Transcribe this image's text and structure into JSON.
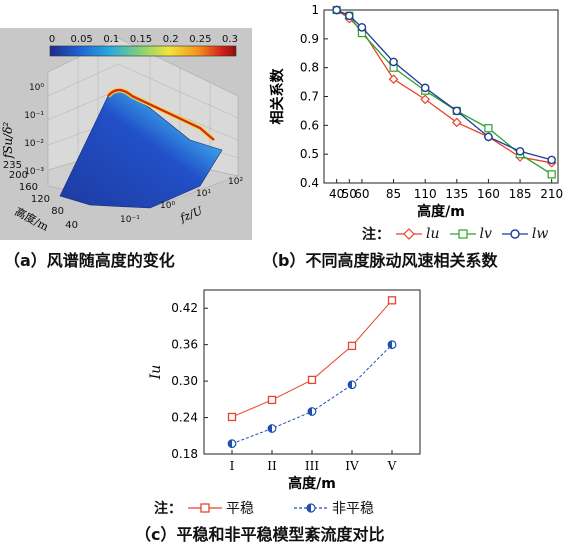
{
  "panel_a": {
    "caption": "（a）风谱随高度的变化",
    "colorbar_ticks": [
      "0",
      "0.05",
      "0.1",
      "0.15",
      "0.2",
      "0.25",
      "0.3"
    ],
    "z_axis_label": "fSu/δ²",
    "z_ticks": [
      "10⁰",
      "10⁻¹",
      "10⁻²",
      "10⁻³"
    ],
    "height_axis_label": "高度/m",
    "height_ticks": [
      "40",
      "80",
      "120",
      "160",
      "200",
      "235"
    ],
    "freq_axis_label": "fz/U",
    "freq_ticks": [
      "10⁻¹",
      "10⁰",
      "10¹",
      "10²"
    ],
    "colors": [
      "#1e2a8a",
      "#1f5fd0",
      "#29a9e0",
      "#7fd07a",
      "#f2e33a",
      "#f2901e",
      "#d8231c",
      "#8a1010"
    ]
  },
  "panel_b": {
    "caption": "（b）不同高度脉动风速相关系数",
    "legend_label": "注：",
    "chart_data": {
      "type": "line",
      "x": [
        40,
        50,
        60,
        85,
        110,
        135,
        160,
        185,
        210
      ],
      "xlabel": "高度/m",
      "ylabel": "相关系数",
      "ylim": [
        0.4,
        1.0
      ],
      "yticks": [
        0.4,
        0.5,
        0.6,
        0.7,
        0.8,
        0.9,
        1
      ],
      "series": [
        {
          "name": "lu",
          "color": "#e8442c",
          "marker": "diamond",
          "values": [
            1.0,
            0.97,
            0.93,
            0.76,
            0.69,
            0.61,
            0.56,
            0.49,
            0.47
          ]
        },
        {
          "name": "lv",
          "color": "#2aa32a",
          "marker": "square",
          "values": [
            1.0,
            0.98,
            0.92,
            0.8,
            0.72,
            0.65,
            0.59,
            0.5,
            0.43
          ]
        },
        {
          "name": "lw",
          "color": "#1f3d96",
          "marker": "circle",
          "values": [
            1.0,
            0.98,
            0.94,
            0.82,
            0.73,
            0.65,
            0.56,
            0.51,
            0.48
          ]
        }
      ],
      "grid": false
    }
  },
  "panel_c": {
    "caption": "（c）平稳和非平稳模型紊流度对比",
    "legend_label": "注：",
    "chart_data": {
      "type": "line",
      "categories": [
        "I",
        "II",
        "III",
        "IV",
        "V"
      ],
      "xlabel": "高度/m",
      "ylabel": "Iu",
      "ylim": [
        0.18,
        0.45
      ],
      "yticks": [
        0.18,
        0.24,
        0.3,
        0.36,
        0.42
      ],
      "series": [
        {
          "name": "平稳",
          "color": "#e8442c",
          "marker": "square",
          "dash": false,
          "values": [
            0.241,
            0.269,
            0.302,
            0.358,
            0.433
          ]
        },
        {
          "name": "非平稳",
          "color": "#1f4fb0",
          "marker": "half-circle",
          "dash": true,
          "values": [
            0.197,
            0.222,
            0.25,
            0.294,
            0.36
          ]
        }
      ],
      "grid": false
    }
  }
}
